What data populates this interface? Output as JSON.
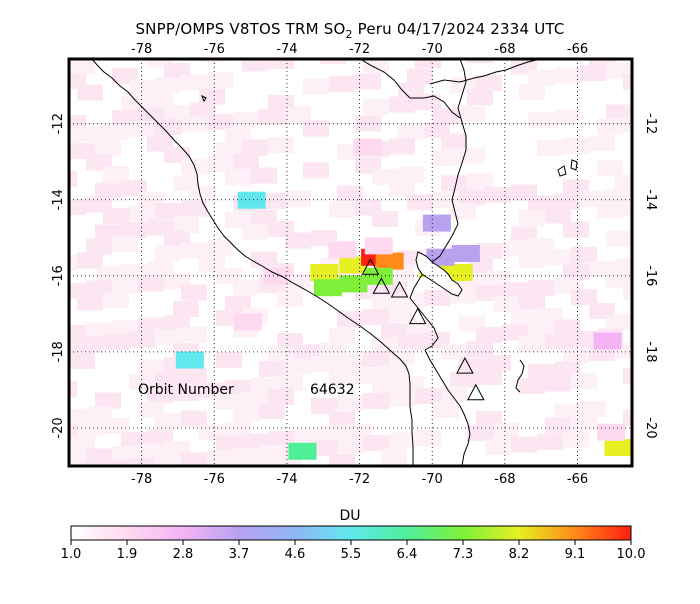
{
  "title": {
    "prefix": "SNPP/OMPS V8TOS TRM SO",
    "subscript": "2",
    "suffix": " Peru 04/17/2024 2334 UTC"
  },
  "map": {
    "lon_range": [
      -80,
      -64.5
    ],
    "lat_range": [
      -21,
      -10.3
    ],
    "lon_ticks": [
      "-78",
      "-76",
      "-74",
      "-72",
      "-70",
      "-68",
      "-66"
    ],
    "lat_ticks": [
      "-12",
      "-14",
      "-16",
      "-18",
      "-20"
    ],
    "orbit_label": "Orbit Number",
    "orbit_number": "64632",
    "volcanoes": [
      {
        "lon": -71.7,
        "lat": -15.8
      },
      {
        "lon": -71.4,
        "lat": -16.3
      },
      {
        "lon": -70.9,
        "lat": -16.4
      },
      {
        "lon": -70.4,
        "lat": -17.1
      },
      {
        "lon": -69.1,
        "lat": -18.4
      },
      {
        "lon": -68.8,
        "lat": -19.1
      }
    ],
    "colors": {
      "background": "#ffffff",
      "pixel_low": "#fbe6f2",
      "pixel_faint": "#fdf0f7",
      "coast": "#000000",
      "grid": "#000000"
    }
  },
  "colorbar": {
    "label": "DU",
    "ticks": [
      "1.0",
      "1.9",
      "2.8",
      "3.7",
      "4.6",
      "5.5",
      "6.4",
      "7.3",
      "8.2",
      "9.1",
      "10.0"
    ],
    "colors": [
      "#ffffff",
      "#ffd9f0",
      "#f5b3f5",
      "#b8a2f0",
      "#8fb6f5",
      "#60e8ee",
      "#4fef9a",
      "#7ff03a",
      "#e6f023",
      "#ff8a18",
      "#ff1e10"
    ]
  }
}
